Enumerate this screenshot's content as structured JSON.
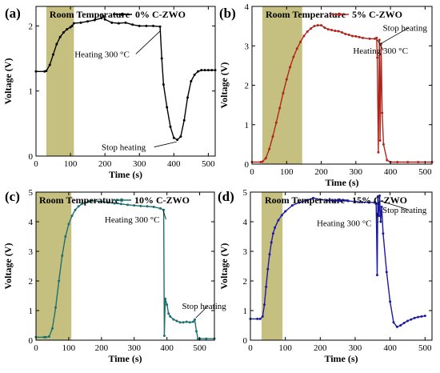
{
  "colors": {
    "shade": "#c5c07f",
    "a": "#000000",
    "b": "#b0251b",
    "c": "#1f6f6f",
    "d": "#1c1aa0"
  },
  "chart_data": [
    {
      "type": "line",
      "panel": "(a)",
      "panel_label": "(a)",
      "room_label": "Room Temperature",
      "ylabel": "Voltage (V)",
      "xlabel": "Time (s)",
      "xlim": [
        0,
        520
      ],
      "ylim": [
        0,
        2.3
      ],
      "xticks": [
        0,
        100,
        200,
        300,
        400,
        500
      ],
      "yticks": [
        0,
        1,
        2
      ],
      "shade": [
        30,
        110
      ],
      "series": [
        {
          "name": "0% C-ZWO",
          "color": "#000000",
          "x": [
            0,
            25,
            30,
            40,
            50,
            60,
            70,
            80,
            90,
            100,
            105,
            110,
            130,
            150,
            170,
            190,
            195,
            200,
            220,
            240,
            260,
            280,
            300,
            320,
            340,
            360,
            365,
            370,
            380,
            390,
            400,
            410,
            420,
            430,
            440,
            450,
            460,
            470,
            480,
            490,
            500,
            510,
            520
          ],
          "y": [
            1.3,
            1.3,
            1.31,
            1.4,
            1.56,
            1.72,
            1.83,
            1.9,
            1.95,
            1.98,
            2.0,
            2.04,
            2.05,
            2.07,
            2.09,
            2.12,
            2.15,
            2.1,
            2.05,
            2.04,
            2.05,
            2.02,
            2.0,
            2.0,
            2.0,
            1.99,
            1.5,
            1.1,
            0.75,
            0.45,
            0.28,
            0.25,
            0.3,
            0.55,
            0.9,
            1.15,
            1.25,
            1.3,
            1.32,
            1.32,
            1.32,
            1.32,
            1.32
          ]
        }
      ],
      "annotations": [
        {
          "text": "Heating 300 °C",
          "x": 112,
          "y": 1.52,
          "ax": 362,
          "ay": 1.93
        },
        {
          "text": "Stop heating",
          "x": 190,
          "y": 0.09,
          "ax": 408,
          "ay": 0.22
        }
      ]
    },
    {
      "type": "line",
      "panel": "(b)",
      "panel_label": "(b)",
      "room_label": "Room Temperature",
      "ylabel": "Voltage (V)",
      "xlabel": "Time (s)",
      "xlim": [
        0,
        520
      ],
      "ylim": [
        0,
        4
      ],
      "xticks": [
        0,
        100,
        200,
        300,
        400,
        500
      ],
      "yticks": [
        0,
        1,
        2,
        3,
        4
      ],
      "shade": [
        30,
        145
      ],
      "series": [
        {
          "name": "5% C-ZWO",
          "color": "#b0251b",
          "x": [
            0,
            25,
            30,
            40,
            50,
            60,
            70,
            80,
            90,
            100,
            110,
            120,
            130,
            140,
            150,
            160,
            170,
            180,
            190,
            200,
            210,
            220,
            230,
            240,
            250,
            260,
            270,
            280,
            290,
            300,
            310,
            320,
            340,
            355,
            360,
            362,
            365,
            368,
            370,
            373,
            376,
            380,
            390,
            400,
            420,
            450,
            480,
            520
          ],
          "y": [
            0.05,
            0.05,
            0.06,
            0.15,
            0.38,
            0.7,
            1.05,
            1.42,
            1.8,
            2.15,
            2.46,
            2.72,
            2.93,
            3.1,
            3.25,
            3.36,
            3.44,
            3.5,
            3.52,
            3.52,
            3.46,
            3.42,
            3.4,
            3.38,
            3.37,
            3.34,
            3.3,
            3.28,
            3.25,
            3.24,
            3.22,
            3.2,
            3.18,
            3.18,
            3.2,
            2.7,
            0.3,
            3.15,
            0.6,
            3.05,
            1.3,
            0.5,
            0.1,
            0.05,
            0.05,
            0.05,
            0.05,
            0.05
          ]
        }
      ],
      "annotations": [
        {
          "text": "Heating 300 °C",
          "x": 292,
          "y": 2.8,
          "ax": 362,
          "ay": 3.15
        },
        {
          "text": "Stop heating",
          "x": 378,
          "y": 3.38,
          "ax": 371,
          "ay": 3.05
        }
      ]
    },
    {
      "type": "line",
      "panel": "(c)",
      "panel_label": "(c)",
      "room_label": "Room Temperature",
      "ylabel": "Voltage (V)",
      "xlabel": "Time (s)",
      "xlim": [
        0,
        545
      ],
      "ylim": [
        0,
        5
      ],
      "xticks": [
        0,
        100,
        200,
        300,
        400,
        500
      ],
      "yticks": [
        0,
        1,
        2,
        3,
        4,
        5
      ],
      "shade": [
        0,
        108
      ],
      "series": [
        {
          "name": "10% C-ZWO",
          "color": "#1f6f6f",
          "x": [
            0,
            25,
            30,
            40,
            50,
            60,
            70,
            80,
            90,
            100,
            110,
            120,
            130,
            140,
            150,
            160,
            170,
            180,
            200,
            220,
            240,
            260,
            280,
            300,
            320,
            340,
            360,
            380,
            390,
            392,
            395,
            400,
            405,
            410,
            420,
            430,
            440,
            450,
            460,
            470,
            480,
            485,
            490,
            495,
            500,
            520,
            545
          ],
          "y": [
            0.1,
            0.1,
            0.1,
            0.12,
            0.4,
            1.1,
            2.0,
            2.85,
            3.5,
            3.92,
            4.2,
            4.4,
            4.52,
            4.6,
            4.65,
            4.68,
            4.7,
            4.7,
            4.68,
            4.65,
            4.62,
            4.6,
            4.57,
            4.55,
            4.53,
            4.52,
            4.5,
            4.45,
            4.4,
            0.15,
            1.4,
            1.2,
            0.9,
            0.8,
            0.7,
            0.65,
            0.6,
            0.6,
            0.62,
            0.6,
            0.62,
            0.7,
            0.3,
            0.05,
            0.05,
            0.05,
            0.05
          ]
        }
      ],
      "annotations": [
        {
          "text": "Heating 300 °C",
          "x": 210,
          "y": 3.97,
          "ax": 388,
          "ay": 4.4
        },
        {
          "text": "Stop heating",
          "x": 446,
          "y": 1.05,
          "ax": 488,
          "ay": 0.75
        }
      ]
    },
    {
      "type": "line",
      "panel": "(d)",
      "panel_label": "(d)",
      "room_label": "Room Temperature",
      "ylabel": "Voltage (V)",
      "xlabel": "Time (s)",
      "xlim": [
        0,
        520
      ],
      "ylim": [
        0,
        5
      ],
      "xticks": [
        0,
        100,
        200,
        300,
        400,
        500
      ],
      "yticks": [
        0,
        1,
        2,
        3,
        4,
        5
      ],
      "shade": [
        32,
        92
      ],
      "series": [
        {
          "name": "15% C-ZWO",
          "color": "#1c1aa0",
          "x": [
            0,
            20,
            28,
            35,
            40,
            45,
            50,
            55,
            60,
            65,
            70,
            80,
            90,
            100,
            120,
            140,
            160,
            180,
            200,
            220,
            240,
            260,
            280,
            300,
            320,
            340,
            355,
            360,
            363,
            365,
            368,
            370,
            373,
            376,
            380,
            390,
            400,
            410,
            420,
            430,
            440,
            450,
            460,
            470,
            480,
            490,
            500
          ],
          "y": [
            0.72,
            0.72,
            0.72,
            0.8,
            1.2,
            1.8,
            2.4,
            2.9,
            3.3,
            3.6,
            3.8,
            4.05,
            4.22,
            4.35,
            4.55,
            4.65,
            4.72,
            4.8,
            4.75,
            4.72,
            4.7,
            4.7,
            4.7,
            4.68,
            4.66,
            4.65,
            4.65,
            4.6,
            2.2,
            4.85,
            4.2,
            4.88,
            4.0,
            4.5,
            3.6,
            2.3,
            1.3,
            0.6,
            0.45,
            0.5,
            0.58,
            0.65,
            0.7,
            0.75,
            0.78,
            0.8,
            0.82
          ]
        }
      ],
      "annotations": [
        {
          "text": "Heating 300 °C",
          "x": 190,
          "y": 3.85,
          "ax": 362,
          "ay": 4.3
        },
        {
          "text": "Stop heating",
          "x": 378,
          "y": 4.3,
          "ax": 372,
          "ay": 4.7
        }
      ]
    }
  ]
}
